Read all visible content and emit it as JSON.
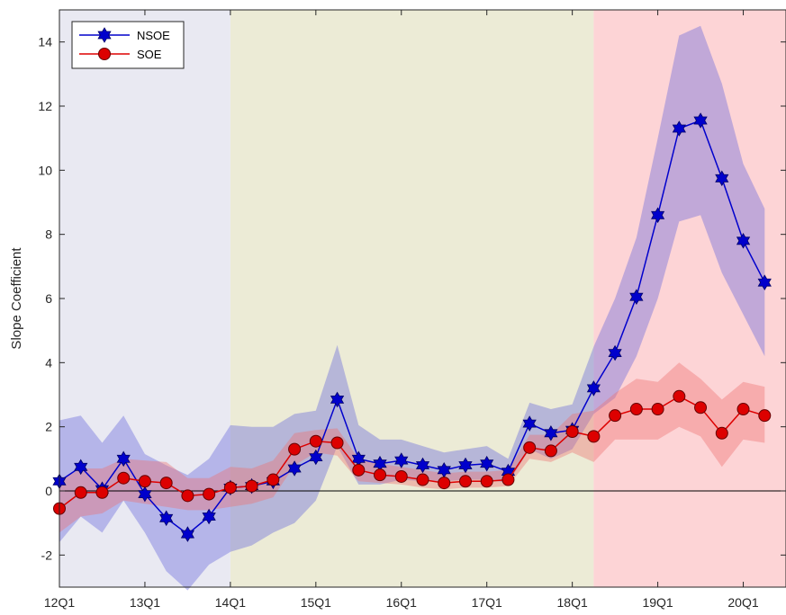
{
  "chart_data": {
    "type": "line",
    "ylabel": "Slope Coefficient",
    "xlabel": "",
    "ylim": [
      -3,
      15
    ],
    "yticks": [
      -2,
      0,
      2,
      4,
      6,
      8,
      10,
      12,
      14
    ],
    "xticks": [
      {
        "label": "12Q1",
        "index": 0
      },
      {
        "label": "13Q1",
        "index": 4
      },
      {
        "label": "14Q1",
        "index": 8
      },
      {
        "label": "15Q1",
        "index": 12
      },
      {
        "label": "16Q1",
        "index": 16
      },
      {
        "label": "17Q1",
        "index": 20
      },
      {
        "label": "18Q1",
        "index": 24
      },
      {
        "label": "19Q1",
        "index": 28
      },
      {
        "label": "20Q1",
        "index": 32
      }
    ],
    "x_index_range": [
      0,
      34
    ],
    "periods": [
      {
        "from": 0,
        "to": 8,
        "color": "#e9e9f2"
      },
      {
        "from": 8,
        "to": 25,
        "color": "#ecebd6"
      },
      {
        "from": 25,
        "to": 34,
        "color": "#fdd4d6"
      }
    ],
    "zero_line": true,
    "legend_position": "top-left",
    "series": [
      {
        "name": "NSOE",
        "color": "#0000cc",
        "marker": "hexagram",
        "band_color": "#6666dd",
        "values": [
          0.3,
          0.75,
          0.05,
          1.0,
          -0.1,
          -0.85,
          -1.35,
          -0.8,
          0.1,
          0.15,
          0.3,
          0.7,
          1.05,
          2.85,
          1.0,
          0.85,
          0.95,
          0.8,
          0.65,
          0.8,
          0.85,
          0.6,
          2.1,
          1.8,
          1.9,
          3.2,
          4.3,
          6.05,
          8.6,
          11.3,
          11.55,
          9.75,
          7.8,
          6.5
        ],
        "lower": [
          -1.6,
          -0.8,
          -1.3,
          -0.3,
          -1.3,
          -2.5,
          -3.1,
          -2.3,
          -1.9,
          -1.7,
          -1.3,
          -1.0,
          -0.3,
          1.4,
          0.2,
          0.2,
          0.35,
          0.3,
          0.3,
          0.35,
          0.35,
          0.25,
          1.3,
          1.0,
          1.3,
          2.4,
          2.9,
          4.2,
          6.0,
          8.4,
          8.6,
          6.8,
          5.5,
          4.2
        ],
        "upper": [
          2.2,
          2.35,
          1.5,
          2.35,
          1.15,
          0.8,
          0.5,
          1.0,
          2.05,
          2.0,
          2.0,
          2.4,
          2.5,
          4.55,
          2.05,
          1.6,
          1.6,
          1.4,
          1.2,
          1.3,
          1.4,
          1.0,
          2.75,
          2.55,
          2.7,
          4.5,
          6.0,
          7.9,
          11.0,
          14.2,
          14.5,
          12.7,
          10.2,
          8.8
        ]
      },
      {
        "name": "SOE",
        "color": "#dd0000",
        "marker": "circle",
        "band_color": "#ee7070",
        "values": [
          -0.55,
          -0.05,
          -0.05,
          0.4,
          0.3,
          0.25,
          -0.15,
          -0.1,
          0.1,
          0.15,
          0.35,
          1.3,
          1.55,
          1.5,
          0.65,
          0.5,
          0.45,
          0.35,
          0.25,
          0.3,
          0.3,
          0.35,
          1.35,
          1.25,
          1.85,
          1.7,
          2.35,
          2.55,
          2.55,
          2.95,
          2.6,
          1.8,
          2.55,
          2.35
        ],
        "lower": [
          -1.3,
          -0.8,
          -0.7,
          -0.3,
          -0.4,
          -0.5,
          -0.6,
          -0.6,
          -0.5,
          -0.4,
          -0.2,
          0.8,
          1.2,
          1.1,
          0.3,
          0.25,
          0.2,
          0.1,
          0.05,
          0.1,
          0.1,
          0.15,
          1.0,
          0.9,
          1.2,
          0.9,
          1.6,
          1.6,
          1.6,
          2.0,
          1.7,
          0.75,
          1.6,
          1.5
        ],
        "upper": [
          0.3,
          0.7,
          0.7,
          1.0,
          0.95,
          0.9,
          0.4,
          0.4,
          0.75,
          0.7,
          0.95,
          1.8,
          1.9,
          1.95,
          1.0,
          0.85,
          0.75,
          0.65,
          0.55,
          0.6,
          0.6,
          0.65,
          1.75,
          1.75,
          2.4,
          2.5,
          3.05,
          3.5,
          3.4,
          4.0,
          3.5,
          2.85,
          3.4,
          3.25
        ]
      }
    ]
  }
}
